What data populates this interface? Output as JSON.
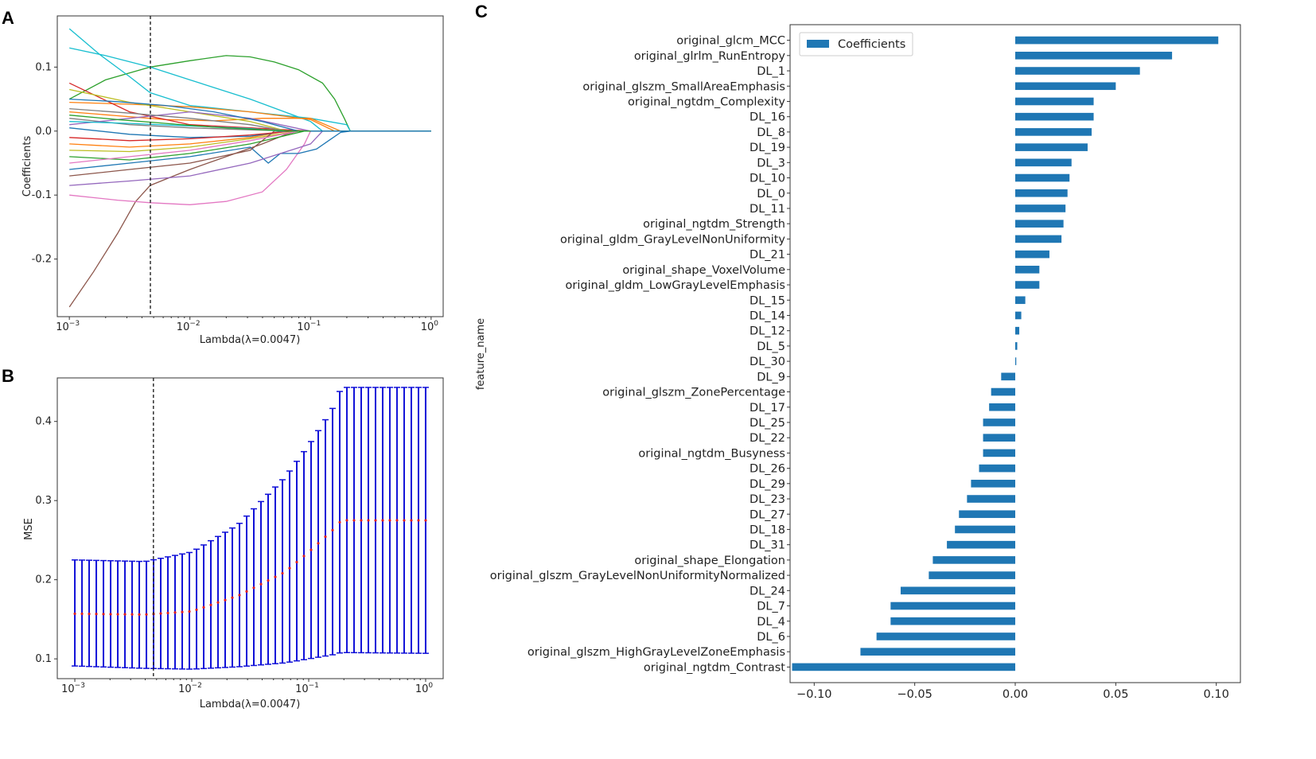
{
  "panels": {
    "a": "A",
    "b": "B",
    "c": "C"
  },
  "chart_data": [
    {
      "panel": "A",
      "type": "line",
      "xlabel": "Lambda(λ=0.0047)",
      "ylabel": "Coefficients",
      "xscale": "log",
      "xlim_log10": [
        -3.1,
        0.1
      ],
      "ylim": [
        -0.29,
        0.18
      ],
      "xticks": [
        {
          "base": "10",
          "exp": "−3",
          "log10": -3
        },
        {
          "base": "10",
          "exp": "−2",
          "log10": -2
        },
        {
          "base": "10",
          "exp": "−1",
          "log10": -1
        },
        {
          "base": "10",
          "exp": "0",
          "log10": 0
        }
      ],
      "yticks": [
        {
          "v": 0.1,
          "label": "0.1"
        },
        {
          "v": 0.0,
          "label": "0.0"
        },
        {
          "v": -0.1,
          "label": "-0.1"
        },
        {
          "v": -0.2,
          "label": "-0.2"
        }
      ],
      "vline_lambda": 0.0047,
      "series": [
        {
          "color": "#2ca02c",
          "x_log10": [
            -3.0,
            -2.7,
            -2.33,
            -2.0,
            -1.7,
            -1.5,
            -1.3,
            -1.1,
            -0.9,
            -0.8,
            -0.72,
            -0.67
          ],
          "y": [
            0.05,
            0.08,
            0.1,
            0.11,
            0.118,
            0.116,
            0.108,
            0.096,
            0.075,
            0.05,
            0.02,
            0.0
          ]
        },
        {
          "color": "#17becf",
          "x_log10": [
            -3.0,
            -2.75,
            -2.5,
            -2.33,
            -2.0,
            -1.5,
            -1.0,
            -0.7,
            -0.67
          ],
          "y": [
            0.16,
            0.12,
            0.085,
            0.06,
            0.04,
            0.03,
            0.02,
            0.01,
            0.0
          ]
        },
        {
          "color": "#17becf",
          "x_log10": [
            -3.0,
            -2.7,
            -2.33,
            -2.0,
            -1.5,
            -1.0,
            -0.9
          ],
          "y": [
            0.13,
            0.118,
            0.1,
            0.08,
            0.05,
            0.015,
            0.0
          ]
        },
        {
          "color": "#8c564b",
          "x_log10": [
            -3.0,
            -2.8,
            -2.6,
            -2.45,
            -2.33,
            -2.2,
            -2.0,
            -1.7,
            -1.4,
            -1.2,
            -1.1
          ],
          "y": [
            -0.275,
            -0.22,
            -0.16,
            -0.11,
            -0.085,
            -0.075,
            -0.06,
            -0.04,
            -0.02,
            -0.005,
            0.0
          ]
        },
        {
          "color": "#e377c2",
          "x_log10": [
            -3.0,
            -2.6,
            -2.33,
            -2.0,
            -1.7,
            -1.4,
            -1.2,
            -1.05,
            -1.0
          ],
          "y": [
            -0.1,
            -0.108,
            -0.112,
            -0.115,
            -0.11,
            -0.095,
            -0.06,
            -0.02,
            0.0
          ]
        },
        {
          "color": "#1f77b4",
          "x_log10": [
            -3.0,
            -2.5,
            -2.0,
            -1.5,
            -1.35,
            -1.25,
            -1.1,
            -0.95,
            -0.85,
            -0.75,
            -0.67
          ],
          "y": [
            -0.06,
            -0.05,
            -0.04,
            -0.025,
            -0.05,
            -0.035,
            -0.035,
            -0.028,
            -0.015,
            -0.002,
            0.0
          ]
        },
        {
          "color": "#9467bd",
          "x_log10": [
            -3.0,
            -2.5,
            -2.0,
            -1.5,
            -1.0,
            -0.9
          ],
          "y": [
            -0.085,
            -0.078,
            -0.07,
            -0.05,
            -0.02,
            0.0
          ]
        },
        {
          "color": "#ff7f0e",
          "x_log10": [
            -3.0,
            -2.5,
            -2.0,
            -1.5,
            -1.0,
            -0.8
          ],
          "y": [
            0.045,
            0.042,
            0.038,
            0.03,
            0.018,
            0.0
          ]
        },
        {
          "color": "#ff7f0e",
          "x_log10": [
            -3.0,
            -2.6,
            -2.2,
            -1.8,
            -1.4,
            -1.0,
            -0.75
          ],
          "y": [
            0.03,
            0.024,
            0.018,
            0.016,
            0.02,
            0.02,
            0.0
          ]
        },
        {
          "color": "#d62728",
          "x_log10": [
            -3.0,
            -2.5,
            -2.0,
            -1.5,
            -1.2,
            -1.0
          ],
          "y": [
            0.075,
            0.03,
            0.01,
            0.005,
            0.002,
            0.0
          ]
        },
        {
          "color": "#bcbd22",
          "x_log10": [
            -3.0,
            -2.5,
            -2.0,
            -1.5,
            -1.2
          ],
          "y": [
            0.065,
            0.045,
            0.03,
            0.015,
            0.0
          ]
        },
        {
          "color": "#7f7f7f",
          "x_log10": [
            -3.0,
            -2.5,
            -2.0,
            -1.5,
            -1.1
          ],
          "y": [
            0.02,
            0.01,
            0.005,
            0.002,
            0.0
          ]
        },
        {
          "color": "#9467bd",
          "x_log10": [
            -3.0,
            -2.5,
            -2.0,
            -1.5,
            -1.0
          ],
          "y": [
            0.01,
            0.02,
            0.03,
            0.02,
            0.0
          ]
        },
        {
          "color": "#2ca02c",
          "x_log10": [
            -3.0,
            -2.5,
            -2.0,
            -1.5,
            -1.05
          ],
          "y": [
            -0.04,
            -0.045,
            -0.035,
            -0.02,
            0.0
          ]
        },
        {
          "color": "#bcbd22",
          "x_log10": [
            -3.0,
            -2.5,
            -2.0,
            -1.5,
            -1.1
          ],
          "y": [
            -0.03,
            -0.032,
            -0.025,
            -0.012,
            0.0
          ]
        },
        {
          "color": "#ff7f0e",
          "x_log10": [
            -3.0,
            -2.5,
            -2.0,
            -1.5,
            -1.2
          ],
          "y": [
            -0.02,
            -0.025,
            -0.02,
            -0.01,
            0.0
          ]
        },
        {
          "color": "#8c564b",
          "x_log10": [
            -3.0,
            -2.5,
            -2.0,
            -1.5,
            -1.3
          ],
          "y": [
            -0.07,
            -0.06,
            -0.05,
            -0.03,
            0.0
          ]
        },
        {
          "color": "#1f77b4",
          "x_log10": [
            -3.0,
            -2.5,
            -2.0,
            -1.5,
            -1.2
          ],
          "y": [
            0.005,
            -0.005,
            -0.01,
            -0.008,
            0.0
          ]
        },
        {
          "color": "#d62728",
          "x_log10": [
            -3.0,
            -2.5,
            -2.0,
            -1.5,
            -1.15
          ],
          "y": [
            -0.01,
            -0.015,
            -0.012,
            -0.006,
            0.0
          ]
        },
        {
          "color": "#17becf",
          "x_log10": [
            -3.0,
            -2.5,
            -2.0,
            -1.5,
            -1.25
          ],
          "y": [
            0.015,
            0.012,
            0.008,
            0.004,
            0.0
          ]
        },
        {
          "color": "#e377c2",
          "x_log10": [
            -3.0,
            -2.5,
            -2.0,
            -1.5,
            -1.1
          ],
          "y": [
            -0.05,
            -0.04,
            -0.03,
            -0.015,
            0.0
          ]
        },
        {
          "color": "#7f7f7f",
          "x_log10": [
            -3.0,
            -2.5,
            -2.0,
            -1.5,
            -1.2
          ],
          "y": [
            0.035,
            0.028,
            0.02,
            0.01,
            0.0
          ]
        },
        {
          "color": "#1f77b4",
          "x_log10": [
            -3.0,
            -2.6,
            -2.2,
            -1.8,
            -1.4,
            -1.1
          ],
          "y": [
            0.05,
            0.046,
            0.04,
            0.03,
            0.015,
            0.0
          ]
        },
        {
          "color": "#2ca02c",
          "x_log10": [
            -3.0,
            -2.6,
            -2.2,
            -1.8,
            -1.4,
            -1.15
          ],
          "y": [
            0.025,
            0.018,
            0.012,
            0.006,
            0.002,
            0.0
          ]
        },
        {
          "color": "#1f77b4",
          "x_log10": [
            -1.0,
            0.0
          ],
          "y": [
            0.0,
            0.0
          ]
        }
      ]
    },
    {
      "panel": "B",
      "type": "errorbar",
      "xlabel": "Lambda(λ=0.0047)",
      "ylabel": "MSE",
      "xscale": "log",
      "xlim_log10": [
        -3.15,
        0.15
      ],
      "ylim": [
        0.075,
        0.455
      ],
      "xticks": [
        {
          "base": "10",
          "exp": "−3",
          "log10": -3
        },
        {
          "base": "10",
          "exp": "−2",
          "log10": -2
        },
        {
          "base": "10",
          "exp": "−1",
          "log10": -1
        },
        {
          "base": "10",
          "exp": "0",
          "log10": 0
        }
      ],
      "yticks": [
        {
          "v": 0.1,
          "label": "0.1"
        },
        {
          "v": 0.2,
          "label": "0.2"
        },
        {
          "v": 0.3,
          "label": "0.3"
        },
        {
          "v": 0.4,
          "label": "0.4"
        }
      ],
      "vline_lambda": 0.0047,
      "n_points": 50,
      "mean_anchors": {
        "x_log10": [
          -3.0,
          -2.4,
          -2.0,
          -1.6,
          -1.2,
          -1.0,
          -0.8,
          -0.72,
          0.0
        ],
        "y": [
          0.157,
          0.156,
          0.16,
          0.18,
          0.21,
          0.235,
          0.262,
          0.275,
          0.275
        ]
      },
      "upper_anchors": {
        "x_log10": [
          -3.0,
          -2.4,
          -2.0,
          -1.6,
          -1.2,
          -1.0,
          -0.8,
          -0.72,
          0.0
        ],
        "y": [
          0.225,
          0.223,
          0.235,
          0.27,
          0.33,
          0.37,
          0.415,
          0.443,
          0.443
        ]
      },
      "lower_anchors": {
        "x_log10": [
          -3.0,
          -2.4,
          -2.0,
          -1.6,
          -1.2,
          -1.0,
          -0.8,
          -0.72,
          0.0
        ],
        "y": [
          0.091,
          0.088,
          0.087,
          0.09,
          0.095,
          0.1,
          0.105,
          0.108,
          0.107
        ]
      }
    },
    {
      "panel": "C",
      "type": "bar",
      "orientation": "horizontal",
      "ylabel": "feature_name",
      "legend": "Coefficients",
      "xlim": [
        -0.112,
        0.112
      ],
      "xticks": [
        {
          "v": -0.1,
          "label": "−0.10"
        },
        {
          "v": -0.05,
          "label": "−0.05"
        },
        {
          "v": 0.0,
          "label": "0.00"
        },
        {
          "v": 0.05,
          "label": "0.05"
        },
        {
          "v": 0.1,
          "label": "0.10"
        }
      ],
      "color": "#1f77b4",
      "categories": [
        "original_glcm_MCC",
        "original_glrlm_RunEntropy",
        "DL_1",
        "original_glszm_SmallAreaEmphasis",
        "original_ngtdm_Complexity",
        "DL_16",
        "DL_8",
        "DL_19",
        "DL_3",
        "DL_10",
        "DL_0",
        "DL_11",
        "original_ngtdm_Strength",
        "original_gldm_GrayLevelNonUniformity",
        "DL_21",
        "original_shape_VoxelVolume",
        "original_gldm_LowGrayLevelEmphasis",
        "DL_15",
        "DL_14",
        "DL_12",
        "DL_5",
        "DL_30",
        "DL_9",
        "original_glszm_ZonePercentage",
        "DL_17",
        "DL_25",
        "DL_22",
        "original_ngtdm_Busyness",
        "DL_26",
        "DL_29",
        "DL_23",
        "DL_27",
        "DL_18",
        "DL_31",
        "original_shape_Elongation",
        "original_glszm_GrayLevelNonUniformityNormalized",
        "DL_24",
        "DL_7",
        "DL_4",
        "DL_6",
        "original_glszm_HighGrayLevelZoneEmphasis",
        "original_ngtdm_Contrast"
      ],
      "values": [
        0.101,
        0.078,
        0.062,
        0.05,
        0.039,
        0.039,
        0.038,
        0.036,
        0.028,
        0.027,
        0.026,
        0.025,
        0.024,
        0.023,
        0.017,
        0.012,
        0.012,
        0.005,
        0.003,
        0.002,
        0.001,
        0.0005,
        -0.007,
        -0.012,
        -0.013,
        -0.016,
        -0.016,
        -0.016,
        -0.018,
        -0.022,
        -0.024,
        -0.028,
        -0.03,
        -0.034,
        -0.041,
        -0.043,
        -0.057,
        -0.062,
        -0.062,
        -0.069,
        -0.077,
        -0.111
      ]
    }
  ]
}
